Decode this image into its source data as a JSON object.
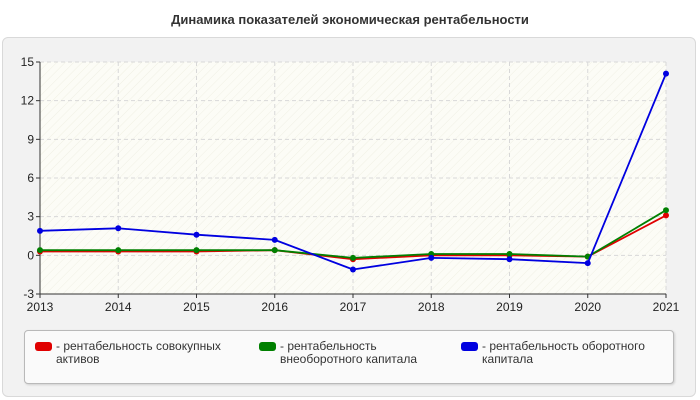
{
  "title": "Динамика показателей экономическая рентабельности",
  "chart_data": {
    "type": "line",
    "x": [
      "2013",
      "2014",
      "2015",
      "2016",
      "2017",
      "2018",
      "2019",
      "2020",
      "2021"
    ],
    "ylim": [
      -3,
      15
    ],
    "yticks": [
      "15",
      "12",
      "9",
      "6",
      "3",
      "0",
      "-3"
    ],
    "grid": true,
    "legend_position": "bottom",
    "series": [
      {
        "name": "рентабельность совокупных активов",
        "color": "#e00000",
        "values": [
          0.3,
          0.3,
          0.3,
          0.4,
          -0.3,
          0.0,
          0.0,
          -0.1,
          3.1
        ]
      },
      {
        "name": "рентабельность внеоборотного капитала",
        "color": "#008000",
        "values": [
          0.4,
          0.4,
          0.4,
          0.4,
          -0.2,
          0.1,
          0.1,
          -0.1,
          3.5
        ]
      },
      {
        "name": "рентабельность оборотного капитала",
        "color": "#0000e0",
        "values": [
          1.9,
          2.1,
          1.6,
          1.2,
          -1.1,
          -0.2,
          -0.3,
          -0.6,
          14.1
        ]
      }
    ]
  },
  "legend": {
    "items": [
      {
        "label": "- рентабельность совокупных активов",
        "color": "#e00000"
      },
      {
        "label": "- рентабельность внеоборотного капитала",
        "color": "#008000"
      },
      {
        "label": "- рентабельность оборотного капитала",
        "color": "#0000e0"
      }
    ]
  }
}
